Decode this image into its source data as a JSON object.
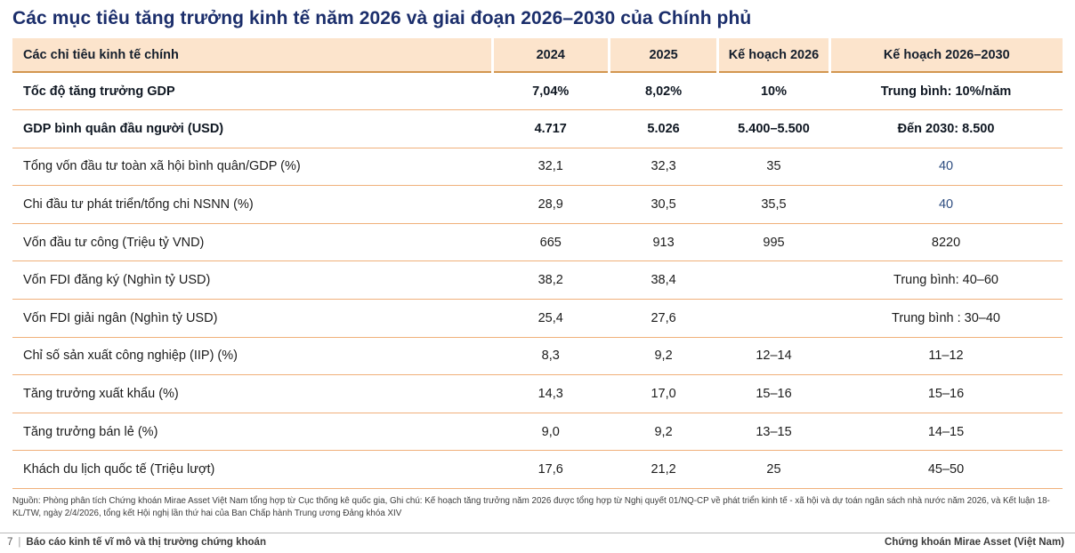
{
  "title": "Các mục tiêu tăng trưởng kinh tế năm 2026 và giai đoạn 2026–2030 của Chính phủ",
  "table": {
    "columns": [
      "Các chỉ tiêu kinh tế chính",
      "2024",
      "2025",
      "Kế hoạch 2026",
      "Kế hoạch 2026–2030"
    ],
    "rows": [
      {
        "label": "Tốc độ tăng trưởng GDP",
        "y2024": "7,04%",
        "y2025": "8,02%",
        "plan2026": "10%",
        "plan2026_2030": "Trung bình: 10%/năm",
        "bold": true,
        "plan2030_blue": false
      },
      {
        "label": "GDP bình quân đầu người (USD)",
        "y2024": "4.717",
        "y2025": "5.026",
        "plan2026": "5.400–5.500",
        "plan2026_2030": "Đến 2030: 8.500",
        "bold": true,
        "plan2030_blue": false
      },
      {
        "label": "Tổng vốn đầu tư toàn xã hội bình quân/GDP (%)",
        "y2024": "32,1",
        "y2025": "32,3",
        "plan2026": "35",
        "plan2026_2030": "40",
        "bold": false,
        "plan2030_blue": true
      },
      {
        "label": "Chi đầu tư phát triển/tổng chi NSNN (%)",
        "y2024": "28,9",
        "y2025": "30,5",
        "plan2026": "35,5",
        "plan2026_2030": "40",
        "bold": false,
        "plan2030_blue": true
      },
      {
        "label": "Vốn đầu tư công (Triệu tỷ VND)",
        "y2024": "665",
        "y2025": "913",
        "plan2026": "995",
        "plan2026_2030": "8220",
        "bold": false,
        "plan2030_blue": false
      },
      {
        "label": "Vốn FDI đăng ký (Nghìn tỷ USD)",
        "y2024": "38,2",
        "y2025": "38,4",
        "plan2026": "",
        "plan2026_2030": "Trung bình: 40–60",
        "bold": false,
        "plan2030_blue": false
      },
      {
        "label": "Vốn FDI  giải ngân (Nghìn tỷ USD)",
        "y2024": "25,4",
        "y2025": "27,6",
        "plan2026": "",
        "plan2026_2030": "Trung bình : 30–40",
        "bold": false,
        "plan2030_blue": false
      },
      {
        "label": "Chỉ số sản xuất công nghiệp (IIP) (%)",
        "y2024": "8,3",
        "y2025": "9,2",
        "plan2026": "12–14",
        "plan2026_2030": "11–12",
        "bold": false,
        "plan2030_blue": false
      },
      {
        "label": "Tăng trưởng xuất khẩu (%)",
        "y2024": "14,3",
        "y2025": "17,0",
        "plan2026": "15–16",
        "plan2026_2030": "15–16",
        "bold": false,
        "plan2030_blue": false
      },
      {
        "label": "Tăng trưởng bán lẻ (%)",
        "y2024": "9,0",
        "y2025": "9,2",
        "plan2026": "13–15",
        "plan2026_2030": "14–15",
        "bold": false,
        "plan2030_blue": false
      },
      {
        "label": "Khách du lịch quốc tế (Triệu lượt)",
        "y2024": "17,6",
        "y2025": "21,2",
        "plan2026": "25",
        "plan2026_2030": "45–50",
        "bold": false,
        "plan2030_blue": false
      }
    ]
  },
  "footnote": "Nguồn: Phòng phân tích Chứng khoán Mirae Asset Việt Nam tổng hợp từ Cục thống kê quốc gia, Ghi chú: Kế hoạch tăng trưởng năm 2026 được tổng hợp từ Nghị quyết 01/NQ-CP về phát triển kinh tế - xã hội và dự toán ngân sách nhà nước năm 2026, và Kết luận 18-KL/TW, ngày 2/4/2026, tổng kết Hội nghị lần thứ hai của Ban Chấp hành Trung ương Đảng khóa XIV",
  "footer": {
    "page_number": "7",
    "divider": "|",
    "report_name": "Báo cáo kinh tế vĩ mô và thị trường chứng khoán",
    "company_name": "Chứng khoán Mirae Asset (Việt Nam)"
  },
  "colors": {
    "title_navy": "#1b2e6b",
    "header_bg": "#fce4cc",
    "header_border_orange": "#d2964f",
    "row_divider_orange": "#f0b07a",
    "highlight_blue": "#2e4d80",
    "footer_gray": "#3a3a3a"
  }
}
